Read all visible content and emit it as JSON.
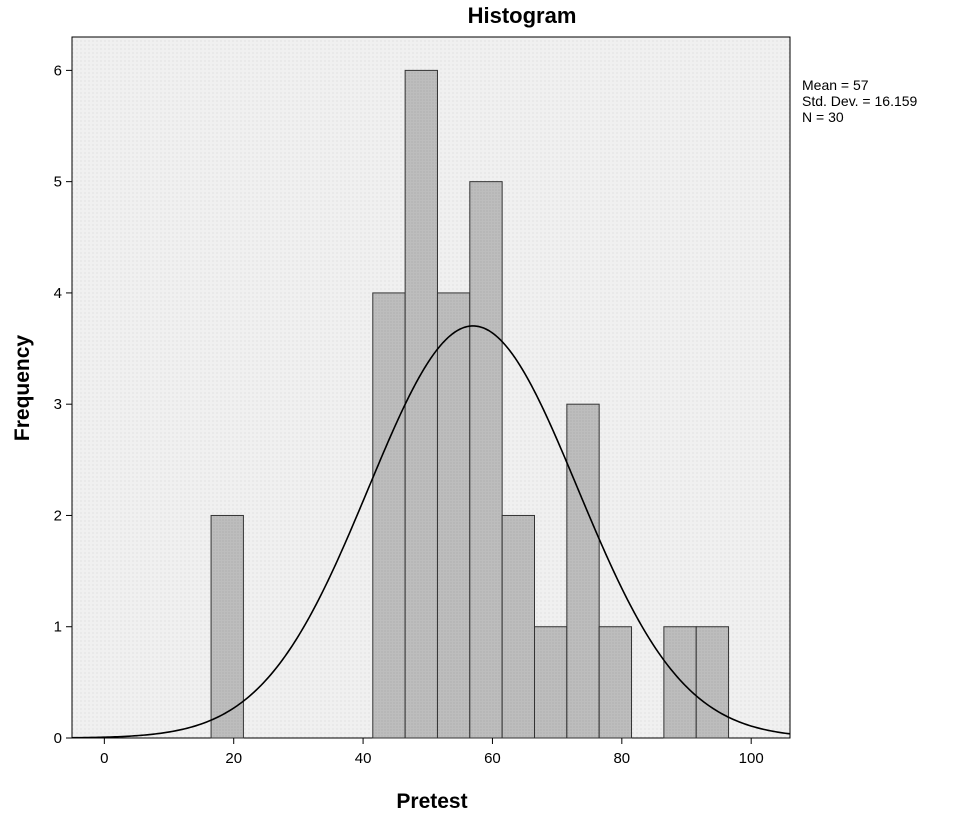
{
  "chart_data": {
    "type": "bar",
    "title": "Histogram",
    "xlabel": "Pretest",
    "ylabel": "Frequency",
    "xlim": [
      -5,
      106
    ],
    "ylim": [
      0,
      6.3
    ],
    "bin_width": 5,
    "x_ticks": [
      0,
      20,
      40,
      60,
      80,
      100
    ],
    "y_ticks": [
      0,
      1,
      2,
      3,
      4,
      5,
      6
    ],
    "bins": [
      {
        "start": 16.5,
        "end": 21.5,
        "count": 2
      },
      {
        "start": 41.5,
        "end": 46.5,
        "count": 4
      },
      {
        "start": 46.5,
        "end": 51.5,
        "count": 6
      },
      {
        "start": 51.5,
        "end": 56.5,
        "count": 4
      },
      {
        "start": 56.5,
        "end": 61.5,
        "count": 5
      },
      {
        "start": 61.5,
        "end": 66.5,
        "count": 2
      },
      {
        "start": 66.5,
        "end": 71.5,
        "count": 1
      },
      {
        "start": 71.5,
        "end": 76.5,
        "count": 3
      },
      {
        "start": 76.5,
        "end": 81.5,
        "count": 1
      },
      {
        "start": 86.5,
        "end": 91.5,
        "count": 1
      },
      {
        "start": 91.5,
        "end": 96.5,
        "count": 1
      }
    ],
    "normal_curve": {
      "mean": 57,
      "sd": 16.159,
      "n": 30
    },
    "stats_text": [
      "Mean = 57",
      "Std. Dev. = 16.159",
      "N = 30"
    ],
    "grid": false,
    "colors": {
      "bar_fill": "#b9b9b9",
      "bar_stroke": "#333333",
      "plot_bg": "#efefef",
      "curve": "#000000"
    }
  }
}
